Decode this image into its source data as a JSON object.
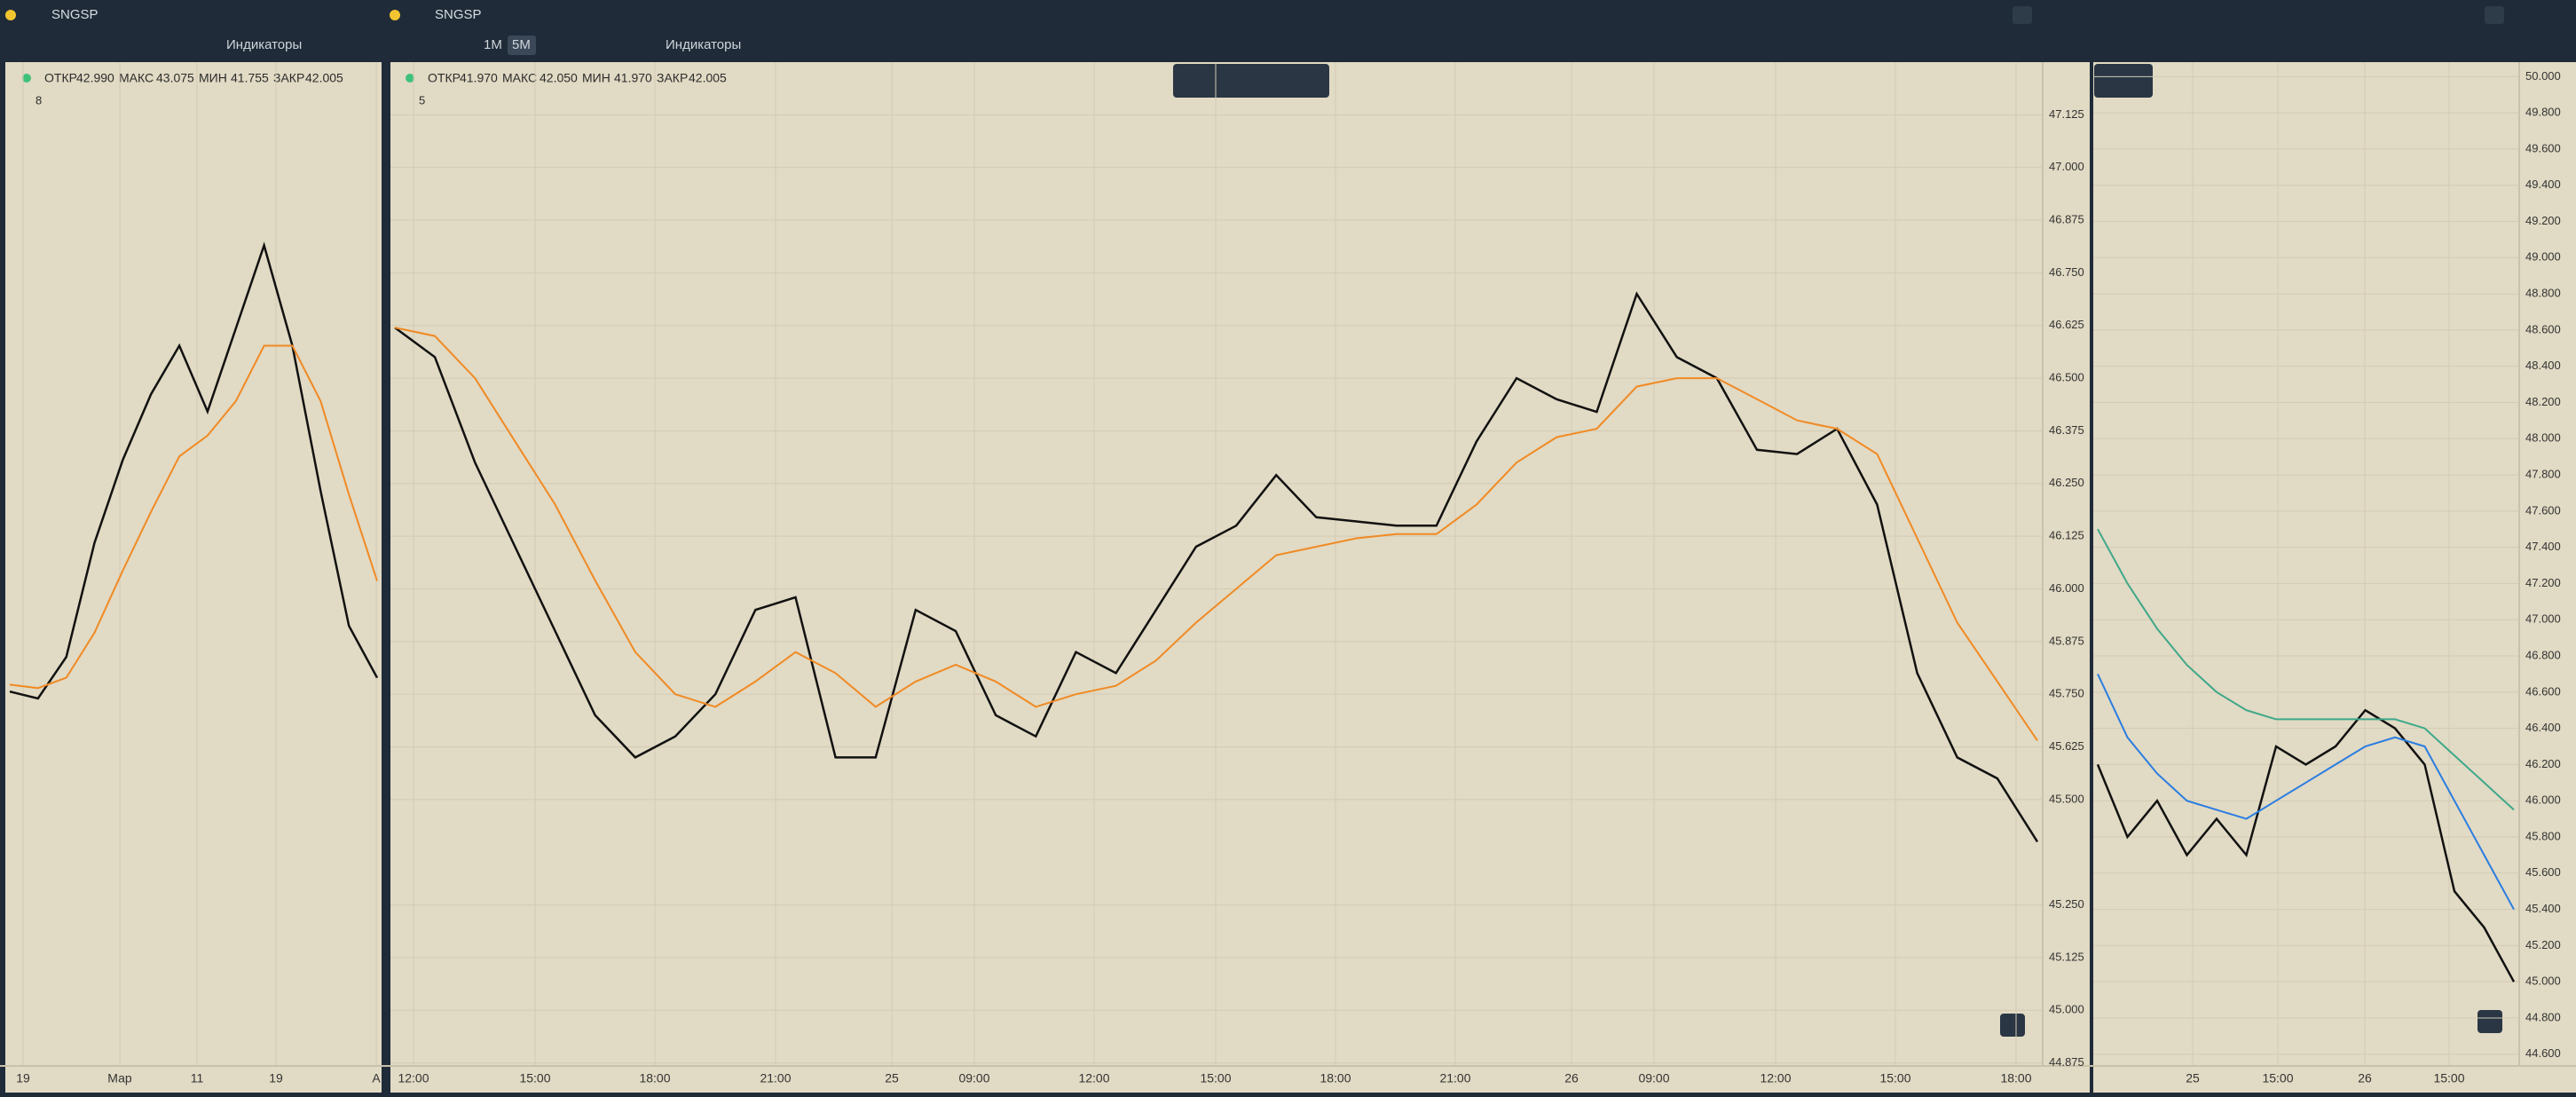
{
  "panels": [
    {
      "symbol": "SNGSP",
      "indicators": "Индикаторы",
      "ohlc": [
        "ОТКР",
        "42.990",
        "МАКС",
        "43.075",
        "МИН",
        "41.755",
        "ЗАКР",
        "42.005"
      ],
      "collapse": "8",
      "time_labels": [
        "19",
        "Мар",
        "11",
        "19",
        "А"
      ],
      "chart_data": {
        "type": "line",
        "ylim": [
          40.9,
          43.8
        ],
        "series": [
          {
            "name": "close",
            "color": "#111111",
            "values": [
              41.98,
              41.96,
              42.08,
              42.41,
              42.65,
              42.84,
              42.98,
              42.79,
              43.03,
              43.27,
              42.98,
              42.56,
              42.17,
              42.02
            ]
          },
          {
            "name": "ma",
            "color": "#f08a24",
            "values": [
              42.0,
              41.99,
              42.02,
              42.15,
              42.33,
              42.5,
              42.66,
              42.72,
              42.82,
              42.98,
              42.98,
              42.82,
              42.55,
              42.3
            ]
          }
        ]
      }
    },
    {
      "symbol": "SNGSP",
      "indicators": "Индикаторы",
      "intervals": [
        "1M",
        "5M"
      ],
      "ohlc": [
        "ОТКР",
        "41.970",
        "МАКС",
        "42.050",
        "МИН",
        "41.970",
        "ЗАКР",
        "42.005"
      ],
      "collapse": "5",
      "time_labels": [
        "12:00",
        "15:00",
        "18:00",
        "21:00",
        "25",
        "09:00",
        "12:00",
        "15:00",
        "18:00",
        "21:00",
        "26",
        "09:00",
        "12:00",
        "15:00",
        "18:00"
      ],
      "chart_data": {
        "type": "line",
        "ylim": [
          44.87,
          47.25
        ],
        "yticks": [
          47.125,
          {
            "value": 47,
            "label": "47.000"
          },
          46.875,
          {
            "value": 46.75,
            "label": "46.750"
          },
          46.625,
          {
            "value": 46.5,
            "label": "46.500"
          },
          46.375,
          {
            "value": 46.25,
            "label": "46.250"
          },
          46.125,
          {
            "value": 46,
            "label": "46.000"
          },
          45.875,
          {
            "value": 45.75,
            "label": "45.750"
          },
          45.625,
          {
            "value": 45.5,
            "label": "45.500"
          },
          {
            "value": 45.25,
            "label": "45.250"
          },
          45.125,
          {
            "value": 45,
            "label": "45.000"
          },
          44.875
        ],
        "series": [
          {
            "name": "close",
            "color": "#111111",
            "values": [
              46.62,
              46.55,
              46.3,
              46.1,
              45.9,
              45.7,
              45.6,
              45.65,
              45.75,
              45.95,
              45.98,
              45.6,
              45.6,
              45.95,
              45.9,
              45.7,
              45.65,
              45.85,
              45.8,
              45.95,
              46.1,
              46.15,
              46.27,
              46.17,
              46.16,
              46.15,
              46.15,
              46.35,
              46.5,
              46.45,
              46.42,
              46.7,
              46.55,
              46.5,
              46.33,
              46.32,
              46.38,
              46.2,
              45.8,
              45.6,
              45.55,
              45.4
            ]
          },
          {
            "name": "ma",
            "color": "#f08a24",
            "values": [
              46.62,
              46.6,
              46.5,
              46.35,
              46.2,
              46.02,
              45.85,
              45.75,
              45.72,
              45.78,
              45.85,
              45.8,
              45.72,
              45.78,
              45.82,
              45.78,
              45.72,
              45.75,
              45.77,
              45.83,
              45.92,
              46.0,
              46.08,
              46.1,
              46.12,
              46.13,
              46.13,
              46.2,
              46.3,
              46.36,
              46.38,
              46.48,
              46.5,
              46.5,
              46.45,
              46.4,
              46.38,
              46.32,
              46.12,
              45.92,
              45.78,
              45.64
            ]
          }
        ]
      }
    },
    {
      "time_labels": [
        "25",
        "15:00",
        "26",
        "15:00"
      ],
      "chart_data": {
        "type": "line",
        "ylim": [
          44.54,
          50.08
        ],
        "yticks": [
          {
            "value": 50,
            "label": "50.000"
          },
          {
            "value": 49.8,
            "label": "49.800"
          },
          {
            "value": 49.6,
            "label": "49.600"
          },
          {
            "value": 49.4,
            "label": "49.400"
          },
          {
            "value": 49.2,
            "label": "49.200"
          },
          {
            "value": 49,
            "label": "49.000"
          },
          {
            "value": 48.8,
            "label": "48.800"
          },
          {
            "value": 48.6,
            "label": "48.600"
          },
          {
            "value": 48.4,
            "label": "48.400"
          },
          {
            "value": 48.2,
            "label": "48.200"
          },
          {
            "value": 48,
            "label": "48.000"
          },
          {
            "value": 47.8,
            "label": "47.800"
          },
          {
            "value": 47.6,
            "label": "47.600"
          },
          {
            "value": 47.4,
            "label": "47.400"
          },
          {
            "value": 47.2,
            "label": "47.200"
          },
          {
            "value": 47,
            "label": "47.000"
          },
          {
            "value": 46.8,
            "label": "46.800"
          },
          {
            "value": 46.6,
            "label": "46.600"
          },
          {
            "value": 46.4,
            "label": "46.400"
          },
          {
            "value": 46.2,
            "label": "46.200"
          },
          {
            "value": 46,
            "label": "46.000"
          },
          {
            "value": 45.8,
            "label": "45.800"
          },
          {
            "value": 45.6,
            "label": "45.600"
          },
          {
            "value": 45.4,
            "label": "45.400"
          },
          {
            "value": 45.2,
            "label": "45.200"
          },
          {
            "value": 45,
            "label": "45.000"
          },
          {
            "value": 44.8,
            "label": "44.800"
          },
          {
            "value": 44.6,
            "label": "44.600"
          }
        ],
        "series": [
          {
            "name": "close",
            "color": "#111111",
            "values": [
              46.2,
              45.8,
              46.0,
              45.7,
              45.9,
              45.7,
              46.3,
              46.2,
              46.3,
              46.5,
              46.4,
              46.2,
              45.5,
              45.3,
              45.0
            ]
          },
          {
            "name": "ma",
            "color": "#2a7de1",
            "values": [
              46.7,
              46.35,
              46.15,
              46.0,
              45.95,
              45.9,
              46.0,
              46.1,
              46.2,
              46.3,
              46.35,
              46.3,
              46.0,
              45.7,
              45.4
            ]
          },
          {
            "name": "ma-slow",
            "color": "#3ea88a",
            "values": [
              47.5,
              47.2,
              46.95,
              46.75,
              46.6,
              46.5,
              46.45,
              46.45,
              46.45,
              46.45,
              46.45,
              46.4,
              46.25,
              46.1,
              45.95
            ]
          }
        ]
      }
    }
  ]
}
